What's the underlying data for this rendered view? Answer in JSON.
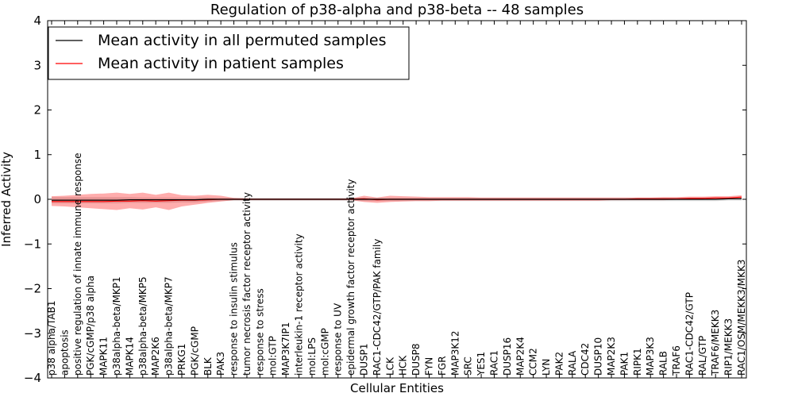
{
  "chart_data": {
    "type": "line",
    "title": "Regulation of p38-alpha and p38-beta -- 48 samples",
    "xlabel": "Cellular Entities",
    "ylabel": "Inferred Activity",
    "ylim": [
      -4,
      4
    ],
    "yticks": [
      -4,
      -3,
      -2,
      -1,
      0,
      1,
      2,
      3,
      4
    ],
    "ytick_labels": [
      "−4",
      "−3",
      "−2",
      "−1",
      "0",
      "1",
      "2",
      "3",
      "4"
    ],
    "grid": false,
    "legend_position": "top-left",
    "categories": [
      "p38 alpha/TAB1",
      "apoptosis",
      "positive regulation of innate immune response",
      "PGK/cGMP/p38 alpha",
      "MAPK11",
      "p38alpha-beta/MKP1",
      "MAPK14",
      "p38alpha-beta/MKP5",
      "MAP2K6",
      "p38alpha-beta/MKP7",
      "PRKG1",
      "PGK/cGMP",
      "BLK",
      "PAK3",
      "response to insulin stimulus",
      "tumor necrosis factor receptor activity",
      "response to stress",
      "mol:GTP",
      "MAP3K7IP1",
      "interleukin-1 receptor activity",
      "mol:LPS",
      "mol:cGMP",
      "response to UV",
      "epidermal growth factor receptor activity",
      "DUSP1",
      "RAC1-CDC42/GTP/PAK family",
      "LCK",
      "HCK",
      "DUSP8",
      "FYN",
      "FGR",
      "MAP3K12",
      "SRC",
      "YES1",
      "RAC1",
      "DUSP16",
      "MAP2K4",
      "CCM2",
      "LYN",
      "PAK2",
      "RALA",
      "CDC42",
      "DUSP10",
      "MAP2K3",
      "PAK1",
      "RIPK1",
      "MAP3K3",
      "RALB",
      "TRAF6",
      "RAC1-CDC42/GTP",
      "RAL/GTP",
      "TRAF6/MEKK3",
      "RIP1/MEKK3",
      "RAC1/OSM/MEKK3/MKK3"
    ],
    "series": [
      {
        "name": "Mean activity in all permuted samples",
        "color": "#000000",
        "values": [
          -0.02,
          -0.02,
          -0.02,
          -0.02,
          -0.02,
          -0.02,
          -0.01,
          -0.01,
          -0.01,
          -0.01,
          -0.01,
          -0.01,
          0.0,
          0.0,
          0.0,
          0.0,
          0.0,
          0.0,
          0.0,
          0.0,
          0.0,
          0.0,
          0.0,
          0.0,
          0.0,
          0.0,
          0.0,
          0.0,
          0.0,
          0.0,
          0.0,
          0.0,
          0.0,
          0.0,
          0.0,
          0.0,
          0.0,
          0.0,
          0.0,
          0.0,
          0.0,
          0.0,
          0.0,
          0.0,
          0.0,
          0.0,
          0.0,
          0.0,
          0.0,
          0.0,
          0.0,
          0.0,
          0.01,
          0.01
        ],
        "band_upper": [
          0.05,
          0.05,
          0.05,
          0.05,
          0.05,
          0.05,
          0.05,
          0.04,
          0.04,
          0.04,
          0.04,
          0.04,
          0.04,
          0.03,
          0.03,
          0.03,
          0.03,
          0.03,
          0.03,
          0.03,
          0.03,
          0.03,
          0.03,
          0.03,
          0.03,
          0.03,
          0.03,
          0.03,
          0.03,
          0.03,
          0.03,
          0.03,
          0.03,
          0.03,
          0.03,
          0.03,
          0.03,
          0.03,
          0.03,
          0.03,
          0.03,
          0.03,
          0.03,
          0.03,
          0.03,
          0.03,
          0.03,
          0.03,
          0.03,
          0.03,
          0.03,
          0.03,
          0.04,
          0.04
        ],
        "band_lower": [
          -0.09,
          -0.09,
          -0.09,
          -0.09,
          -0.09,
          -0.09,
          -0.08,
          -0.08,
          -0.08,
          -0.08,
          -0.07,
          -0.07,
          -0.05,
          -0.04,
          -0.03,
          -0.03,
          -0.03,
          -0.03,
          -0.03,
          -0.03,
          -0.03,
          -0.03,
          -0.03,
          -0.03,
          -0.04,
          -0.04,
          -0.04,
          -0.04,
          -0.04,
          -0.04,
          -0.04,
          -0.04,
          -0.04,
          -0.04,
          -0.04,
          -0.04,
          -0.04,
          -0.04,
          -0.04,
          -0.04,
          -0.04,
          -0.04,
          -0.04,
          -0.04,
          -0.04,
          -0.04,
          -0.04,
          -0.04,
          -0.04,
          -0.04,
          -0.04,
          -0.04,
          -0.03,
          -0.03
        ]
      },
      {
        "name": "Mean activity in patient samples",
        "color": "#ff0000",
        "values": [
          -0.05,
          -0.05,
          -0.05,
          -0.05,
          -0.05,
          -0.04,
          -0.04,
          -0.03,
          -0.04,
          -0.03,
          -0.02,
          -0.02,
          -0.01,
          0.0,
          0.0,
          0.0,
          0.0,
          0.0,
          0.0,
          0.0,
          0.0,
          0.0,
          0.0,
          0.0,
          0.01,
          -0.01,
          0.0,
          0.0,
          0.0,
          0.0,
          0.0,
          0.0,
          0.0,
          0.0,
          0.0,
          0.0,
          0.0,
          0.0,
          0.0,
          0.0,
          0.0,
          0.0,
          0.0,
          0.0,
          0.0,
          0.01,
          0.01,
          0.01,
          0.01,
          0.02,
          0.02,
          0.03,
          0.03,
          0.05
        ],
        "band_upper": [
          0.07,
          0.08,
          0.1,
          0.12,
          0.13,
          0.15,
          0.12,
          0.15,
          0.1,
          0.15,
          0.09,
          0.08,
          0.1,
          0.08,
          0.03,
          0.02,
          0.02,
          0.02,
          0.02,
          0.02,
          0.02,
          0.02,
          0.02,
          0.02,
          0.08,
          0.04,
          0.08,
          0.07,
          0.06,
          0.05,
          0.05,
          0.05,
          0.05,
          0.04,
          0.04,
          0.04,
          0.04,
          0.04,
          0.04,
          0.04,
          0.04,
          0.04,
          0.04,
          0.04,
          0.04,
          0.04,
          0.04,
          0.05,
          0.05,
          0.06,
          0.06,
          0.07,
          0.07,
          0.09
        ],
        "band_lower": [
          -0.15,
          -0.16,
          -0.18,
          -0.2,
          -0.22,
          -0.24,
          -0.2,
          -0.23,
          -0.18,
          -0.24,
          -0.16,
          -0.12,
          -0.08,
          -0.05,
          -0.02,
          -0.02,
          -0.02,
          -0.02,
          -0.02,
          -0.02,
          -0.02,
          -0.02,
          -0.02,
          -0.02,
          -0.06,
          -0.08,
          -0.06,
          -0.05,
          -0.04,
          -0.04,
          -0.03,
          -0.03,
          -0.03,
          -0.03,
          -0.03,
          -0.03,
          -0.03,
          -0.03,
          -0.03,
          -0.03,
          -0.03,
          -0.03,
          -0.03,
          -0.02,
          -0.02,
          -0.02,
          -0.02,
          -0.02,
          -0.01,
          -0.01,
          0.0,
          0.0,
          0.0,
          0.01
        ]
      }
    ]
  }
}
